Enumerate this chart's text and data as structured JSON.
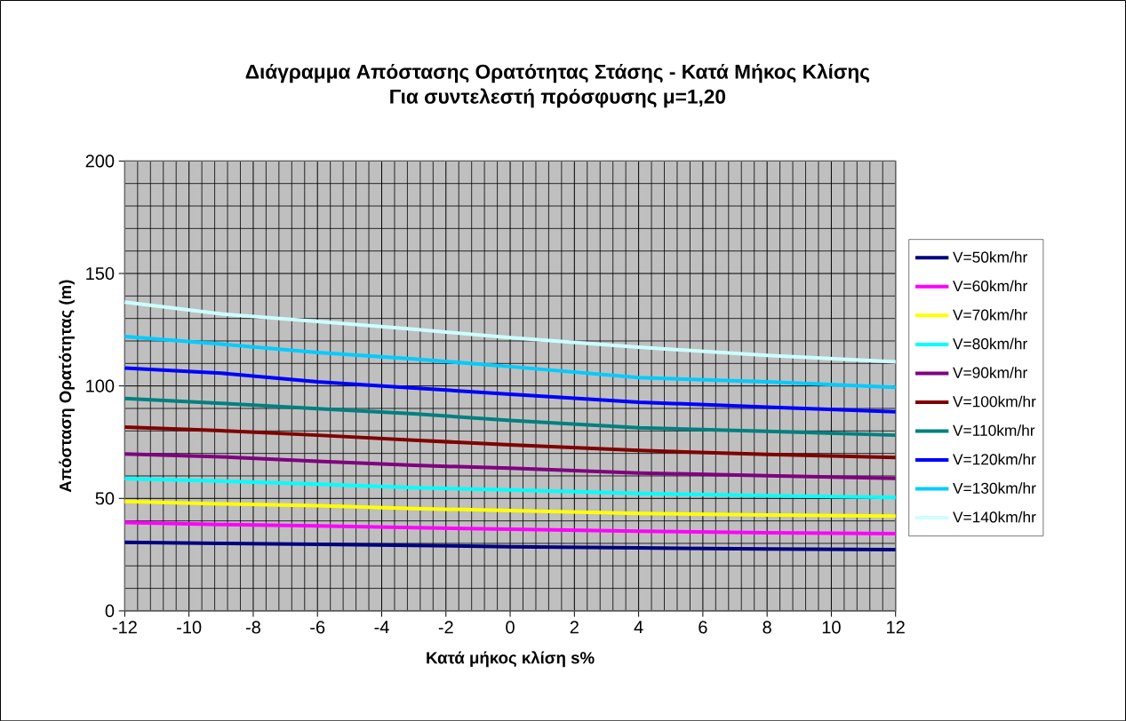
{
  "chart_data": {
    "type": "line",
    "title": "Διάγραμμα Απόστασης Ορατότητας Στάσης - Κατά Μήκος Κλίσης",
    "subtitle": "Για συντελεστή πρόσφυσης μ=1,20",
    "xlabel": "Κατά μήκος κλίση s%",
    "ylabel": "Απόσταση Ορατότητας (m)",
    "x": [
      -12,
      -9,
      -6,
      -3,
      0,
      4,
      8,
      12
    ],
    "series": [
      {
        "name": "V=50km/hr",
        "color": "#000080",
        "values": [
          30.5,
          30.0,
          29.6,
          29.1,
          28.5,
          28.0,
          27.5,
          27.2
        ]
      },
      {
        "name": "V=60km/hr",
        "color": "#ff00ff",
        "values": [
          39.3,
          38.4,
          37.8,
          37.0,
          36.3,
          35.4,
          34.7,
          34.3
        ]
      },
      {
        "name": "V=70km/hr",
        "color": "#ffff00",
        "values": [
          48.6,
          47.6,
          46.8,
          45.5,
          44.6,
          43.3,
          42.6,
          42.1
        ]
      },
      {
        "name": "V=80km/hr",
        "color": "#00ffff",
        "values": [
          58.8,
          57.7,
          56.3,
          54.8,
          53.8,
          52.2,
          51.2,
          50.4
        ]
      },
      {
        "name": "V=90km/hr",
        "color": "#800080",
        "values": [
          69.8,
          68.5,
          66.5,
          64.7,
          63.4,
          61.3,
          60.1,
          58.9
        ]
      },
      {
        "name": "V=100km/hr",
        "color": "#800000",
        "values": [
          81.7,
          80.1,
          78.1,
          75.9,
          73.8,
          71.3,
          69.6,
          68.2
        ]
      },
      {
        "name": "V=110km/hr",
        "color": "#008080",
        "values": [
          94.4,
          92.3,
          89.9,
          87.6,
          84.7,
          81.4,
          79.8,
          78.1
        ]
      },
      {
        "name": "V=120km/hr",
        "color": "#0000ff",
        "values": [
          108.0,
          105.7,
          101.8,
          99.1,
          96.3,
          92.8,
          90.6,
          88.5
        ]
      },
      {
        "name": "V=130km/hr",
        "color": "#00ccff",
        "values": [
          122.0,
          118.6,
          114.9,
          112.0,
          108.6,
          103.7,
          101.8,
          99.4
        ]
      },
      {
        "name": "V=140km/hr",
        "color": "#ccffff",
        "values": [
          137.3,
          132.0,
          128.7,
          125.2,
          121.5,
          117.2,
          113.6,
          110.7
        ]
      }
    ],
    "xlim": [
      -12,
      12
    ],
    "xticks": [
      -12,
      -10,
      -8,
      -6,
      -4,
      -2,
      0,
      2,
      4,
      6,
      8,
      10,
      12
    ],
    "ylim": [
      0,
      200
    ],
    "yticks": [
      0,
      50,
      100,
      150,
      200
    ],
    "grid": true,
    "legend": "right",
    "marker": "none",
    "line_style": "solid"
  }
}
